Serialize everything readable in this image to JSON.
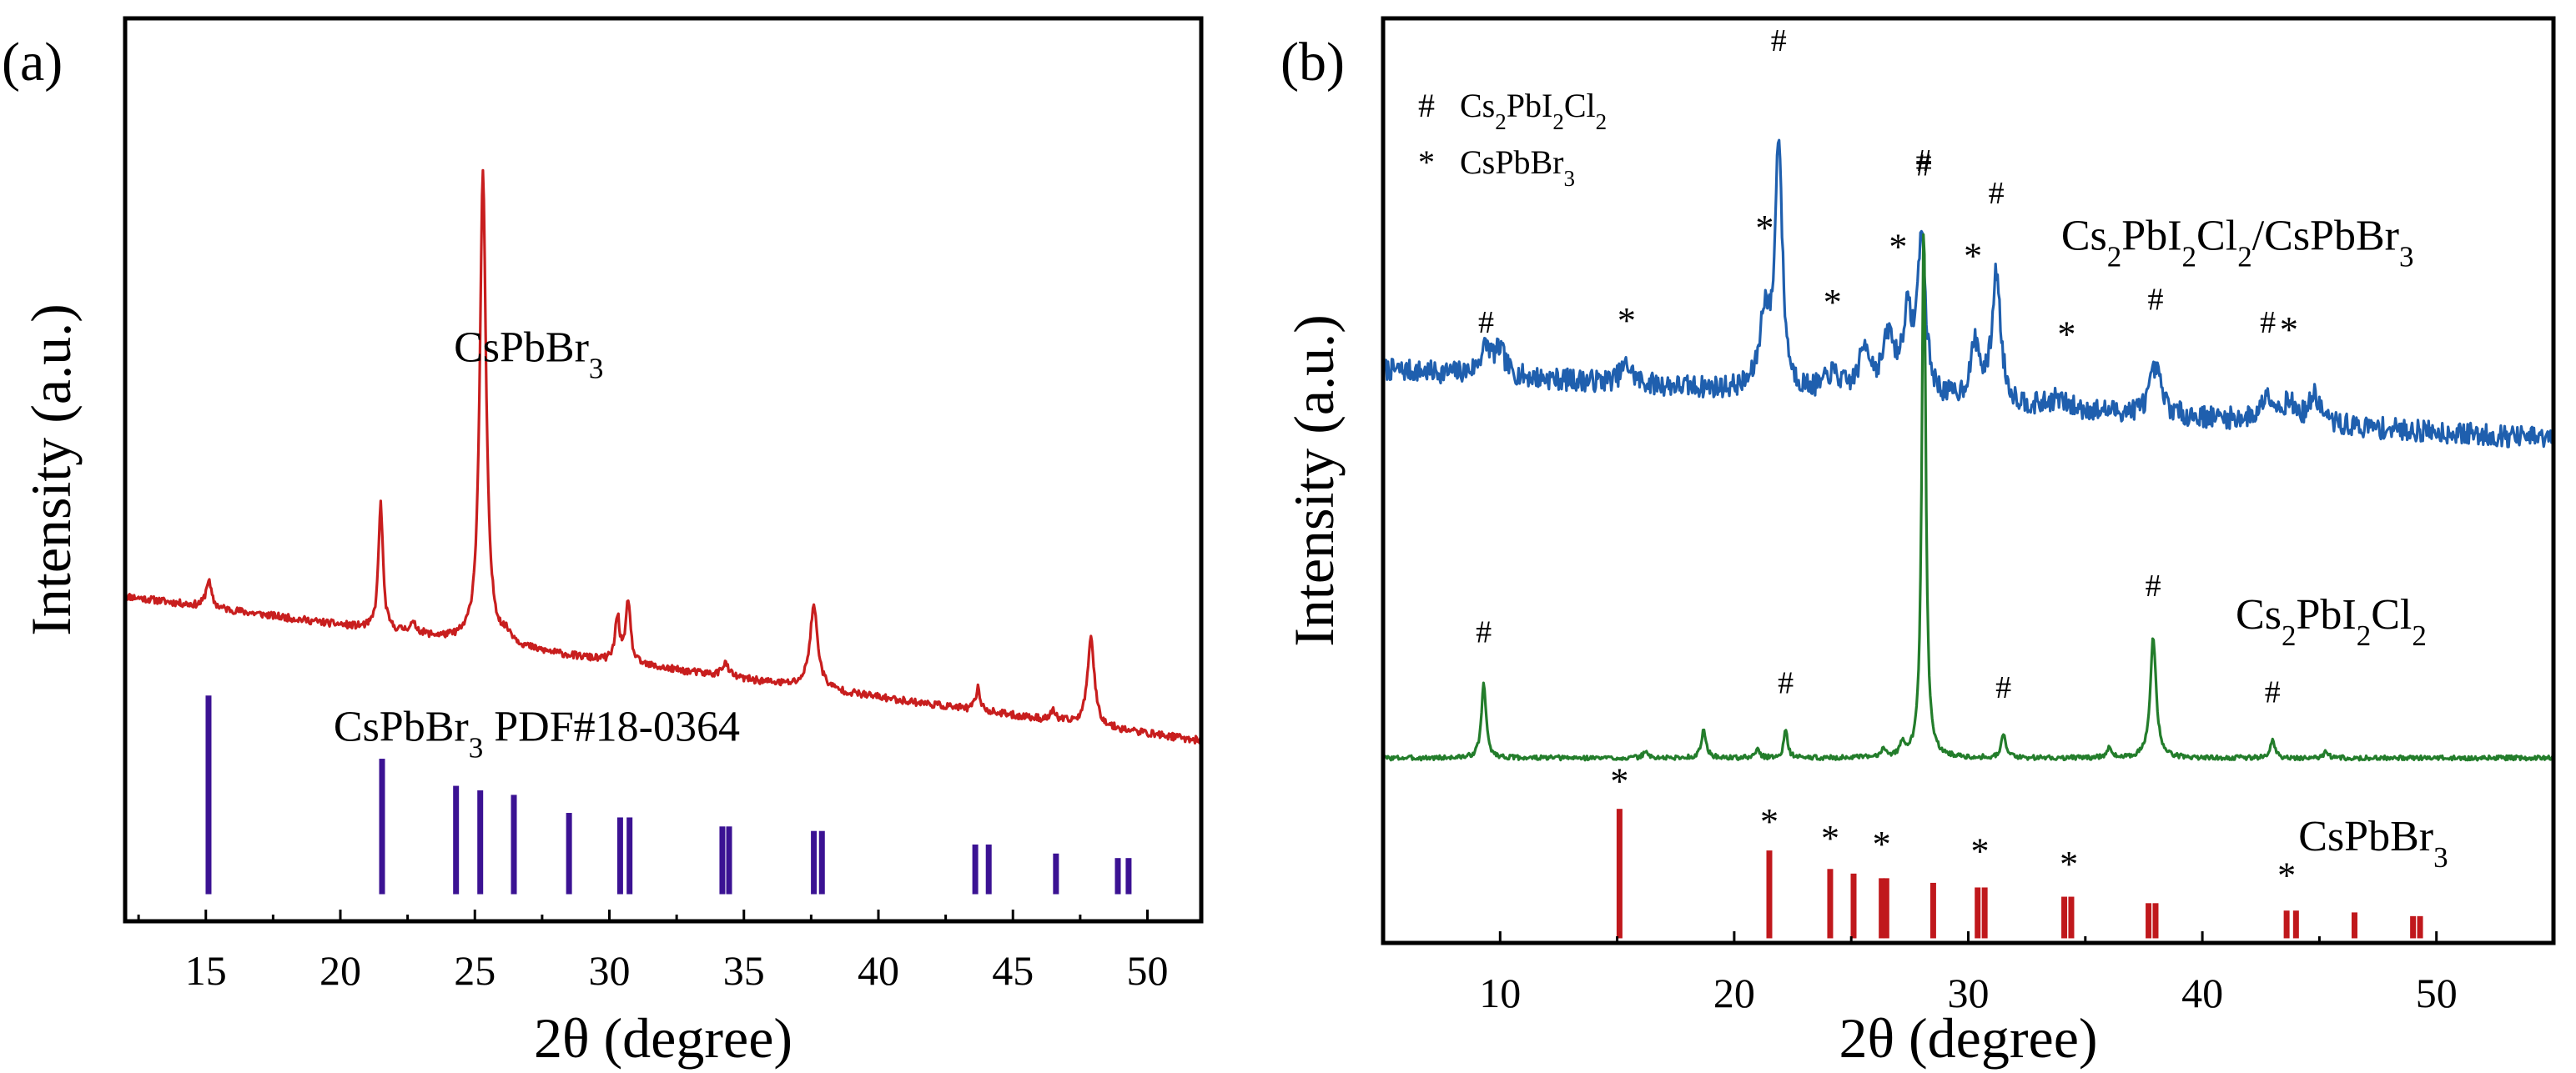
{
  "chart_data": [
    {
      "type": "line",
      "panel_label": "(a)",
      "xlabel": "2θ (degree)",
      "ylabel": "Intensity (a.u.)",
      "xlim": [
        12,
        52
      ],
      "ylim": [
        0,
        1
      ],
      "xticks": [
        15,
        20,
        25,
        30,
        35,
        40,
        45,
        50
      ],
      "xtick_labels": [
        "15",
        "20",
        "25",
        "30",
        "35",
        "40",
        "45",
        "50"
      ],
      "yticks": [],
      "colors": {
        "pattern": "#c81e1e",
        "reference": "#3b1293",
        "axis": "#000000"
      },
      "series": [
        {
          "name": "CsPbBr₃",
          "kind": "pattern",
          "baseline": 0.36,
          "slope": -0.004,
          "noise": 0.004,
          "seed": 11,
          "peaks": [
            [
              15.1,
              0.03,
              0.12
            ],
            [
              21.5,
              0.14,
              0.1
            ],
            [
              22.7,
              0.01,
              0.2
            ],
            [
              25.3,
              0.52,
              0.14
            ],
            [
              26.2,
              0.01,
              0.3
            ],
            [
              30.3,
              0.05,
              0.1
            ],
            [
              30.7,
              0.07,
              0.1
            ],
            [
              34.3,
              0.015,
              0.15
            ],
            [
              37.6,
              0.09,
              0.18
            ],
            [
              43.7,
              0.025,
              0.1
            ],
            [
              46.5,
              0.01,
              0.12
            ],
            [
              47.9,
              0.1,
              0.15
            ]
          ]
        },
        {
          "name": "CsPbBr₃ PDF#18-0364",
          "kind": "reference",
          "baseline": 0.03,
          "sticks": [
            [
              15.1,
              0.22
            ],
            [
              21.55,
              0.15
            ],
            [
              24.3,
              0.12
            ],
            [
              25.2,
              0.115
            ],
            [
              26.45,
              0.11
            ],
            [
              28.5,
              0.09
            ],
            [
              30.4,
              0.085
            ],
            [
              30.75,
              0.085
            ],
            [
              34.2,
              0.075
            ],
            [
              34.45,
              0.075
            ],
            [
              37.6,
              0.07
            ],
            [
              37.9,
              0.07
            ],
            [
              43.6,
              0.055
            ],
            [
              44.1,
              0.055
            ],
            [
              46.6,
              0.045
            ],
            [
              48.9,
              0.04
            ],
            [
              49.3,
              0.04
            ]
          ]
        }
      ],
      "annotations": [
        {
          "text": "CsPbBr₃",
          "x": 27,
          "y": 0.62
        },
        {
          "text": "CsPbBr₃ PDF#18-0364",
          "x": 27.3,
          "y": 0.2
        }
      ]
    },
    {
      "type": "line",
      "panel_label": "(b)",
      "xlabel": "2θ (degree)",
      "ylabel": "Intensity (a.u.)",
      "xlim": [
        5,
        55
      ],
      "ylim": [
        0,
        1
      ],
      "xticks": [
        10,
        20,
        30,
        40,
        50
      ],
      "xtick_labels": [
        "10",
        "20",
        "30",
        "40",
        "50"
      ],
      "yticks": [],
      "colors": {
        "composite": "#1f5fae",
        "cs2": "#237d2b",
        "reference": "#c0181c",
        "axis": "#000000"
      },
      "legend": [
        {
          "symbol": "#",
          "label": "Cs₂PbI₂Cl₂"
        },
        {
          "symbol": "*",
          "label": "CsPbBr₃"
        }
      ],
      "series": [
        {
          "name": "Cs₂PbI₂Cl₂/CsPbBr₃",
          "kind": "pattern",
          "baseline": 0.62,
          "slope": -0.0015,
          "noise": 0.012,
          "seed": 7,
          "peaks": [
            [
              9.4,
              0.03,
              0.3
            ],
            [
              10.0,
              0.025,
              0.25
            ],
            [
              15.4,
              0.02,
              0.3
            ],
            [
              21.3,
              0.08,
              0.25
            ],
            [
              21.9,
              0.27,
              0.18
            ],
            [
              24.2,
              0.02,
              0.4
            ],
            [
              25.6,
              0.05,
              0.3
            ],
            [
              26.6,
              0.06,
              0.3
            ],
            [
              27.4,
              0.08,
              0.25
            ],
            [
              28.0,
              0.17,
              0.2
            ],
            [
              30.3,
              0.06,
              0.25
            ],
            [
              31.2,
              0.14,
              0.22
            ],
            [
              33.8,
              0.01,
              0.4
            ],
            [
              38.0,
              0.05,
              0.3
            ],
            [
              42.8,
              0.03,
              0.3
            ],
            [
              43.7,
              0.02,
              0.3
            ],
            [
              44.8,
              0.03,
              0.3
            ]
          ],
          "markers": [
            {
              "symbol": "#",
              "x": 9.4,
              "y": 0.66
            },
            {
              "symbol": "*",
              "x": 15.4,
              "y": 0.66
            },
            {
              "symbol": "*",
              "x": 21.3,
              "y": 0.76
            },
            {
              "symbol": "#",
              "x": 21.9,
              "y": 0.965
            },
            {
              "symbol": "*",
              "x": 24.2,
              "y": 0.68
            },
            {
              "symbol": "*",
              "x": 27.0,
              "y": 0.74
            },
            {
              "symbol": "#",
              "x": 28.1,
              "y": 0.83
            },
            {
              "symbol": "*",
              "x": 30.2,
              "y": 0.73
            },
            {
              "symbol": "#",
              "x": 31.2,
              "y": 0.8
            },
            {
              "symbol": "*",
              "x": 34.2,
              "y": 0.645
            },
            {
              "symbol": "#",
              "x": 38.0,
              "y": 0.685
            },
            {
              "symbol": "#",
              "x": 42.8,
              "y": 0.66
            },
            {
              "symbol": "*",
              "x": 43.7,
              "y": 0.65
            }
          ]
        },
        {
          "name": "Cs₂PbI₂Cl₂",
          "kind": "pattern",
          "baseline": 0.2,
          "slope": 0,
          "noise": 0.0025,
          "seed": 3,
          "peaks": [
            [
              9.3,
              0.08,
              0.12
            ],
            [
              16.2,
              0.008,
              0.1
            ],
            [
              18.7,
              0.03,
              0.12
            ],
            [
              21.0,
              0.01,
              0.1
            ],
            [
              22.2,
              0.03,
              0.1
            ],
            [
              26.4,
              0.01,
              0.12
            ],
            [
              27.2,
              0.015,
              0.12
            ],
            [
              28.1,
              0.58,
              0.1
            ],
            [
              31.5,
              0.025,
              0.12
            ],
            [
              36.0,
              0.01,
              0.12
            ],
            [
              37.9,
              0.13,
              0.15
            ],
            [
              43.0,
              0.018,
              0.12
            ],
            [
              45.3,
              0.008,
              0.1
            ]
          ],
          "markers": [
            {
              "symbol": "#",
              "x": 9.3,
              "y": 0.325
            },
            {
              "symbol": "#",
              "x": 22.2,
              "y": 0.27
            },
            {
              "symbol": "#",
              "x": 28.1,
              "y": 0.835
            },
            {
              "symbol": "#",
              "x": 31.5,
              "y": 0.265
            },
            {
              "symbol": "#",
              "x": 37.9,
              "y": 0.375
            },
            {
              "symbol": "#",
              "x": 43.0,
              "y": 0.26
            }
          ]
        },
        {
          "name": "CsPbBr₃",
          "kind": "reference",
          "baseline": 0.005,
          "sticks": [
            [
              15.1,
              0.14
            ],
            [
              21.5,
              0.095
            ],
            [
              24.1,
              0.075
            ],
            [
              25.1,
              0.07
            ],
            [
              26.3,
              0.065
            ],
            [
              26.5,
              0.065
            ],
            [
              28.5,
              0.06
            ],
            [
              30.4,
              0.055
            ],
            [
              30.7,
              0.055
            ],
            [
              34.1,
              0.045
            ],
            [
              34.4,
              0.045
            ],
            [
              37.7,
              0.038
            ],
            [
              38.0,
              0.038
            ],
            [
              43.6,
              0.03
            ],
            [
              44.0,
              0.03
            ],
            [
              46.5,
              0.028
            ],
            [
              49.0,
              0.024
            ],
            [
              49.3,
              0.024
            ]
          ],
          "markers": [
            {
              "symbol": "*",
              "x": 15.1,
              "y": 0.162
            },
            {
              "symbol": "*",
              "x": 21.5,
              "y": 0.118
            },
            {
              "symbol": "*",
              "x": 24.1,
              "y": 0.1
            },
            {
              "symbol": "*",
              "x": 26.3,
              "y": 0.094
            },
            {
              "symbol": "*",
              "x": 30.5,
              "y": 0.086
            },
            {
              "symbol": "*",
              "x": 34.3,
              "y": 0.072
            },
            {
              "symbol": "*",
              "x": 43.6,
              "y": 0.06
            }
          ]
        }
      ],
      "annotations": [
        {
          "text": "Cs₂PbI₂Cl₂/CsPbBr₃",
          "x": 41.5,
          "y": 0.75
        },
        {
          "text": "Cs₂PbI₂Cl₂",
          "x": 45.5,
          "y": 0.34
        },
        {
          "text": "CsPbBr₃",
          "x": 47.3,
          "y": 0.1
        }
      ]
    }
  ]
}
